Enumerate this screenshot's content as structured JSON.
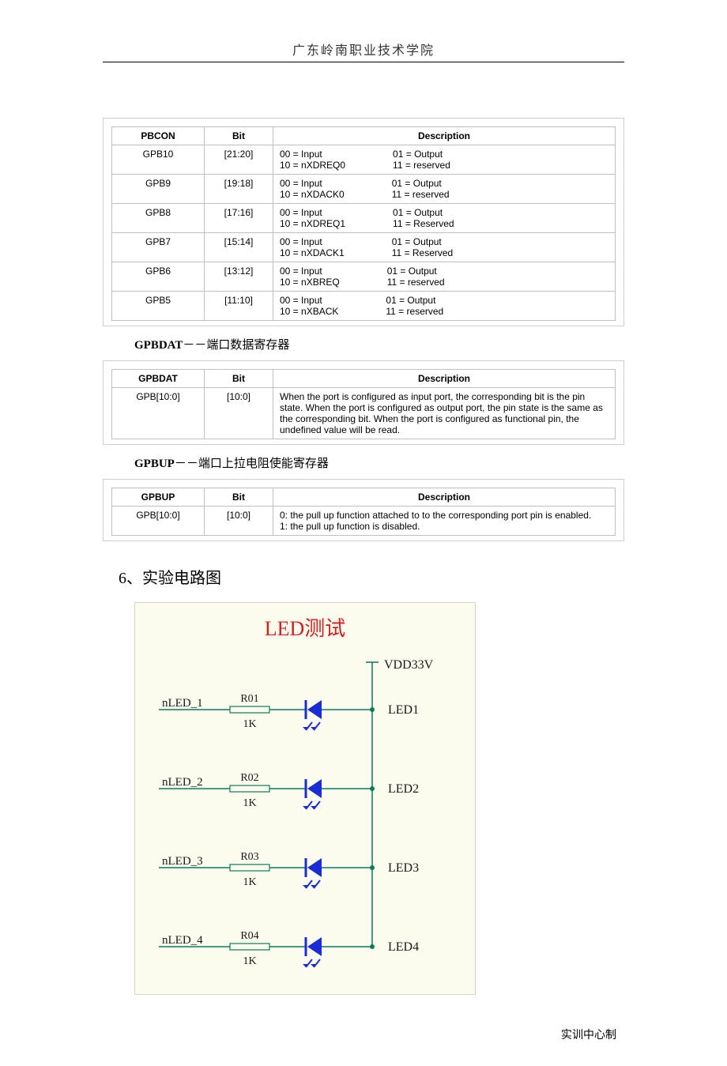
{
  "header": {
    "title": "广东岭南职业技术学院"
  },
  "table1": {
    "headers": [
      "PBCON",
      "Bit",
      "Description"
    ],
    "rows": [
      {
        "name": "GPB10",
        "bit": "[21:20]",
        "c1a": "00 = Input",
        "c1b": "10 = nXDREQ0",
        "c2a": "01 = Output",
        "c2b": "11 = reserved"
      },
      {
        "name": "GPB9",
        "bit": "[19:18]",
        "c1a": "00 = Input",
        "c1b": "10 = nXDACK0",
        "c2a": "01 = Output",
        "c2b": "11 = reserved"
      },
      {
        "name": "GPB8",
        "bit": "[17:16]",
        "c1a": "00 = Input",
        "c1b": "10 = nXDREQ1",
        "c2a": "01 = Output",
        "c2b": "11 = Reserved"
      },
      {
        "name": "GPB7",
        "bit": "[15:14]",
        "c1a": "00 = Input",
        "c1b": "10 = nXDACK1",
        "c2a": "01 = Output",
        "c2b": "11 = Reserved"
      },
      {
        "name": "GPB6",
        "bit": "[13:12]",
        "c1a": "00 = Input",
        "c1b": "10 = nXBREQ",
        "c2a": "01 = Output",
        "c2b": "11 = reserved"
      },
      {
        "name": "GPB5",
        "bit": "[11:10]",
        "c1a": "00 = Input",
        "c1b": "10 = nXBACK",
        "c2a": "01 = Output",
        "c2b": "11 = reserved"
      }
    ]
  },
  "heading2": {
    "bold": "GPBDAT",
    "rest": "－－端口数据寄存器"
  },
  "table2": {
    "headers": [
      "GPBDAT",
      "Bit",
      "Description"
    ],
    "row": {
      "name": "GPB[10:0]",
      "bit": "[10:0]",
      "desc": "When the port is configured as input port, the corresponding bit is the pin state. When the port is configured as output port, the pin state is the same as the corresponding bit. When the port is configured as functional pin, the undefined value will be read."
    }
  },
  "heading3": {
    "bold": "GPBUP",
    "rest": "－－端口上拉电阻使能寄存器"
  },
  "table3": {
    "headers": [
      "GPBUP",
      "Bit",
      "Description"
    ],
    "row": {
      "name": "GPB[10:0]",
      "bit": "[10:0]",
      "desc1": "0: the pull up function attached to to the corresponding port pin is enabled.",
      "desc2": "1: the pull up function is disabled."
    }
  },
  "section6": "6、实验电路图",
  "circuit": {
    "title": "LED测试",
    "vdd": "VDD33V",
    "rows": [
      {
        "net": "nLED_1",
        "res": "R01",
        "rval": "1K",
        "led": "LED1"
      },
      {
        "net": "nLED_2",
        "res": "R02",
        "rval": "1K",
        "led": "LED2"
      },
      {
        "net": "nLED_3",
        "res": "R03",
        "rval": "1K",
        "led": "LED3"
      },
      {
        "net": "nLED_4",
        "res": "R04",
        "rval": "1K",
        "led": "LED4"
      }
    ],
    "colors": {
      "wire": "#0a7a5a",
      "led": "#1a2bd8",
      "text": "#1a1a1a",
      "title": "#d02020"
    }
  },
  "footer": "实训中心制"
}
